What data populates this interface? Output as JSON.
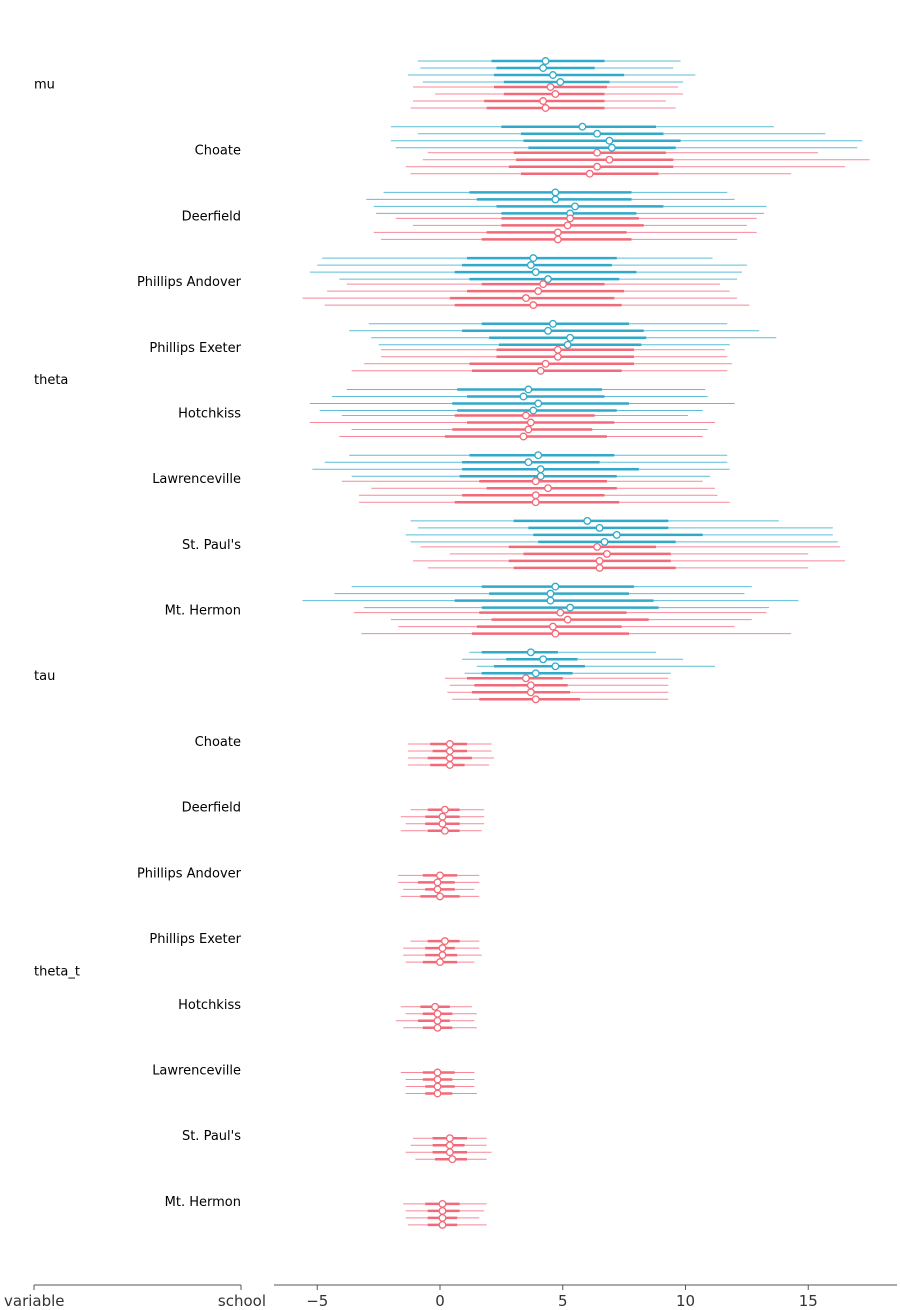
{
  "chart_data": {
    "type": "forest",
    "xlim": [
      -6.8,
      18.6
    ],
    "xticks": [
      "−5",
      "0",
      "5",
      "10",
      "15"
    ],
    "xtick_values": [
      -5,
      0,
      5,
      10,
      15
    ],
    "grid": false,
    "legend": "none",
    "axis_labels": {
      "variable": "variable",
      "school": "school"
    },
    "colors": {
      "model_1_inner": "#31a9c8",
      "model_1_outer": "#5dbdd7",
      "model_2_inner": "#f26a79",
      "model_2_outer": "#f7899a"
    },
    "variables": [
      {
        "label": "mu",
        "first": 0,
        "last": 0
      },
      {
        "label": "theta",
        "first": 1,
        "last": 8
      },
      {
        "label": "tau",
        "first": 9,
        "last": 9
      },
      {
        "label": "theta_t",
        "first": 10,
        "last": 17
      }
    ],
    "groups": [
      {
        "variable": "mu",
        "school": "",
        "m1": [
          [
            -0.9,
            2.1,
            4.3,
            6.7,
            9.8
          ],
          [
            -0.8,
            2.3,
            4.2,
            6.3,
            9.5
          ],
          [
            -1.3,
            2.2,
            4.6,
            7.5,
            10.4
          ],
          [
            -0.7,
            2.6,
            4.9,
            6.9,
            9.9
          ]
        ],
        "m2": [
          [
            -1.1,
            2.2,
            4.5,
            6.8,
            9.7
          ],
          [
            -0.2,
            2.6,
            4.7,
            6.7,
            9.9
          ],
          [
            -1.1,
            1.8,
            4.2,
            6.7,
            9.2
          ],
          [
            -1.2,
            1.9,
            4.3,
            6.7,
            9.6
          ]
        ]
      },
      {
        "variable": "theta",
        "school": "Choate",
        "m1": [
          [
            -2.0,
            2.5,
            5.8,
            8.8,
            13.6
          ],
          [
            -0.9,
            3.3,
            6.4,
            9.1,
            15.7
          ],
          [
            -2.0,
            3.4,
            6.9,
            9.8,
            17.2
          ],
          [
            -1.8,
            3.6,
            7.0,
            9.6,
            17.0
          ]
        ],
        "m2": [
          [
            -0.5,
            3.0,
            6.4,
            9.2,
            15.4
          ],
          [
            -0.7,
            3.1,
            6.9,
            9.5,
            17.5
          ],
          [
            -1.4,
            2.8,
            6.4,
            9.5,
            16.5
          ],
          [
            -1.2,
            3.3,
            6.1,
            8.9,
            14.3
          ]
        ]
      },
      {
        "variable": "theta",
        "school": "Deerfield",
        "m1": [
          [
            -2.3,
            1.2,
            4.7,
            7.8,
            11.7
          ],
          [
            -3.0,
            1.5,
            4.7,
            7.8,
            12.0
          ],
          [
            -2.7,
            2.3,
            5.5,
            9.1,
            13.3
          ],
          [
            -2.6,
            2.5,
            5.3,
            8.0,
            13.2
          ]
        ],
        "m2": [
          [
            -1.8,
            2.5,
            5.3,
            8.1,
            12.9
          ],
          [
            -1.1,
            2.5,
            5.2,
            8.3,
            12.5
          ],
          [
            -2.7,
            1.9,
            4.8,
            7.6,
            12.9
          ],
          [
            -2.4,
            1.7,
            4.8,
            7.8,
            12.1
          ]
        ]
      },
      {
        "variable": "theta",
        "school": "Phillips Andover",
        "m1": [
          [
            -4.8,
            1.1,
            3.8,
            7.2,
            11.1
          ],
          [
            -5.0,
            0.9,
            3.7,
            7.0,
            12.5
          ],
          [
            -5.3,
            0.6,
            3.9,
            8.0,
            12.3
          ],
          [
            -4.1,
            1.2,
            4.4,
            7.3,
            12.1
          ]
        ],
        "m2": [
          [
            -3.8,
            1.7,
            4.2,
            6.7,
            11.4
          ],
          [
            -4.6,
            1.1,
            4.0,
            7.5,
            11.8
          ],
          [
            -5.6,
            0.4,
            3.5,
            7.1,
            12.1
          ],
          [
            -4.7,
            0.6,
            3.8,
            7.4,
            12.6
          ]
        ]
      },
      {
        "variable": "theta",
        "school": "Phillips Exeter",
        "m1": [
          [
            -2.9,
            1.7,
            4.6,
            7.7,
            11.7
          ],
          [
            -3.7,
            0.9,
            4.4,
            8.3,
            13.0
          ],
          [
            -2.8,
            2.0,
            5.3,
            8.4,
            13.7
          ],
          [
            -2.5,
            2.4,
            5.2,
            8.2,
            11.8
          ]
        ],
        "m2": [
          [
            -2.4,
            2.3,
            4.8,
            7.9,
            11.6
          ],
          [
            -2.4,
            2.3,
            4.8,
            7.9,
            11.7
          ],
          [
            -3.1,
            1.2,
            4.3,
            7.9,
            11.9
          ],
          [
            -3.6,
            1.3,
            4.1,
            7.4,
            11.7
          ]
        ]
      },
      {
        "variable": "theta",
        "school": "Hotchkiss",
        "m1": [
          [
            -3.8,
            0.7,
            3.6,
            6.6,
            10.8
          ],
          [
            -4.4,
            1.1,
            3.4,
            6.7,
            10.9
          ],
          [
            -5.3,
            0.5,
            4.0,
            7.7,
            12.0
          ],
          [
            -4.9,
            0.7,
            3.8,
            7.2,
            10.7
          ]
        ],
        "m2": [
          [
            -4.0,
            0.6,
            3.5,
            6.3,
            10.1
          ],
          [
            -5.3,
            1.1,
            3.7,
            7.1,
            11.2
          ],
          [
            -3.6,
            0.5,
            3.6,
            6.2,
            10.9
          ],
          [
            -4.1,
            0.2,
            3.4,
            6.8,
            10.7
          ]
        ]
      },
      {
        "variable": "theta",
        "school": "Lawrenceville",
        "m1": [
          [
            -3.7,
            1.2,
            4.0,
            7.1,
            11.7
          ],
          [
            -4.7,
            0.9,
            3.6,
            6.5,
            11.7
          ],
          [
            -5.2,
            0.9,
            4.1,
            8.1,
            11.8
          ],
          [
            -3.6,
            0.8,
            4.1,
            7.2,
            11.0
          ]
        ],
        "m2": [
          [
            -4.0,
            1.6,
            3.9,
            6.8,
            10.7
          ],
          [
            -2.8,
            1.9,
            4.4,
            7.2,
            11.2
          ],
          [
            -3.3,
            0.9,
            3.9,
            6.7,
            11.3
          ],
          [
            -3.3,
            0.6,
            3.9,
            7.3,
            11.8
          ]
        ]
      },
      {
        "variable": "theta",
        "school": "St. Paul's",
        "m1": [
          [
            -1.2,
            3.0,
            6.0,
            9.3,
            13.8
          ],
          [
            -0.9,
            3.6,
            6.5,
            9.3,
            16.0
          ],
          [
            -1.4,
            3.8,
            7.2,
            10.7,
            16.0
          ],
          [
            -1.2,
            4.0,
            6.7,
            9.6,
            16.2
          ]
        ],
        "m2": [
          [
            -0.8,
            2.8,
            6.4,
            8.8,
            16.3
          ],
          [
            0.4,
            3.4,
            6.8,
            9.4,
            15.0
          ],
          [
            -1.1,
            2.8,
            6.5,
            9.4,
            16.5
          ],
          [
            -0.5,
            3.0,
            6.5,
            9.6,
            15.0
          ]
        ]
      },
      {
        "variable": "theta",
        "school": "Mt. Hermon",
        "m1": [
          [
            -3.6,
            1.7,
            4.7,
            7.9,
            12.7
          ],
          [
            -4.3,
            2.0,
            4.5,
            7.7,
            12.4
          ],
          [
            -5.6,
            0.6,
            4.5,
            8.7,
            14.6
          ],
          [
            -3.1,
            1.7,
            5.3,
            8.9,
            13.4
          ]
        ],
        "m2": [
          [
            -3.5,
            1.6,
            4.9,
            7.6,
            13.3
          ],
          [
            -2.0,
            2.1,
            5.2,
            8.5,
            12.7
          ],
          [
            -1.7,
            1.5,
            4.6,
            7.4,
            12.0
          ],
          [
            -3.2,
            1.3,
            4.7,
            7.7,
            14.3
          ]
        ]
      },
      {
        "variable": "tau",
        "school": "",
        "m1": [
          [
            1.2,
            1.7,
            3.7,
            4.8,
            8.8
          ],
          [
            0.9,
            2.7,
            4.2,
            5.6,
            9.9
          ],
          [
            1.5,
            2.2,
            4.7,
            5.9,
            11.2
          ],
          [
            1.0,
            1.7,
            3.9,
            5.4,
            9.4
          ]
        ],
        "m2": [
          [
            0.2,
            1.1,
            3.5,
            5.0,
            9.3
          ],
          [
            0.4,
            1.4,
            3.7,
            5.2,
            9.3
          ],
          [
            0.3,
            1.3,
            3.7,
            5.3,
            9.3
          ],
          [
            0.5,
            1.6,
            3.9,
            5.7,
            9.3
          ]
        ]
      },
      {
        "variable": "theta_t",
        "school": "Choate",
        "m1": [],
        "m2": [
          [
            -1.3,
            -0.4,
            0.4,
            1.1,
            2.1
          ],
          [
            -1.3,
            -0.3,
            0.4,
            1.1,
            2.1
          ],
          [
            -1.3,
            -0.5,
            0.4,
            1.3,
            2.2
          ],
          [
            -1.3,
            -0.4,
            0.4,
            1.0,
            2.0
          ]
        ]
      },
      {
        "variable": "theta_t",
        "school": "Deerfield",
        "m1": [],
        "m2": [
          [
            -1.2,
            -0.5,
            0.2,
            0.8,
            1.8
          ],
          [
            -1.6,
            -0.6,
            0.1,
            0.8,
            1.8
          ],
          [
            -1.4,
            -0.6,
            0.1,
            0.8,
            1.8
          ],
          [
            -1.6,
            -0.5,
            0.2,
            0.8,
            1.7
          ]
        ]
      },
      {
        "variable": "theta_t",
        "school": "Phillips Andover",
        "m1": [],
        "m2": [
          [
            -1.7,
            -0.7,
            0.0,
            0.7,
            1.6
          ],
          [
            -1.7,
            -0.9,
            -0.1,
            0.6,
            1.6
          ],
          [
            -1.5,
            -0.6,
            -0.1,
            0.6,
            1.4
          ],
          [
            -1.6,
            -0.8,
            0.0,
            0.8,
            1.6
          ]
        ]
      },
      {
        "variable": "theta_t",
        "school": "Phillips Exeter",
        "m1": [],
        "m2": [
          [
            -1.2,
            -0.5,
            0.2,
            0.8,
            1.6
          ],
          [
            -1.5,
            -0.6,
            0.1,
            0.6,
            1.6
          ],
          [
            -1.5,
            -0.6,
            0.1,
            0.7,
            1.7
          ],
          [
            -1.4,
            -0.7,
            0.0,
            0.7,
            1.4
          ]
        ]
      },
      {
        "variable": "theta_t",
        "school": "Hotchkiss",
        "m1": [],
        "m2": [
          [
            -1.6,
            -0.8,
            -0.2,
            0.4,
            1.3
          ],
          [
            -1.4,
            -0.7,
            -0.1,
            0.5,
            1.5
          ],
          [
            -1.8,
            -0.9,
            -0.1,
            0.4,
            1.4
          ],
          [
            -1.5,
            -0.7,
            -0.1,
            0.5,
            1.5
          ]
        ]
      },
      {
        "variable": "theta_t",
        "school": "Lawrenceville",
        "m1": [],
        "m2": [
          [
            -1.6,
            -0.7,
            -0.1,
            0.6,
            1.4
          ],
          [
            -1.4,
            -0.7,
            -0.1,
            0.5,
            1.4
          ],
          [
            -1.4,
            -0.6,
            -0.1,
            0.6,
            1.4
          ],
          [
            -1.4,
            -0.6,
            -0.1,
            0.5,
            1.5
          ]
        ]
      },
      {
        "variable": "theta_t",
        "school": "St. Paul's",
        "m1": [],
        "m2": [
          [
            -1.1,
            -0.3,
            0.4,
            1.1,
            1.9
          ],
          [
            -1.2,
            -0.3,
            0.4,
            1.0,
            1.9
          ],
          [
            -1.4,
            -0.3,
            0.4,
            1.1,
            2.1
          ],
          [
            -1.0,
            -0.2,
            0.5,
            1.1,
            1.9
          ]
        ]
      },
      {
        "variable": "theta_t",
        "school": "Mt. Hermon",
        "m1": [],
        "m2": [
          [
            -1.5,
            -0.6,
            0.1,
            0.8,
            1.9
          ],
          [
            -1.4,
            -0.5,
            0.1,
            0.8,
            1.8
          ],
          [
            -1.4,
            -0.5,
            0.1,
            0.7,
            1.6
          ],
          [
            -1.3,
            -0.5,
            0.1,
            0.7,
            1.9
          ]
        ]
      }
    ]
  }
}
